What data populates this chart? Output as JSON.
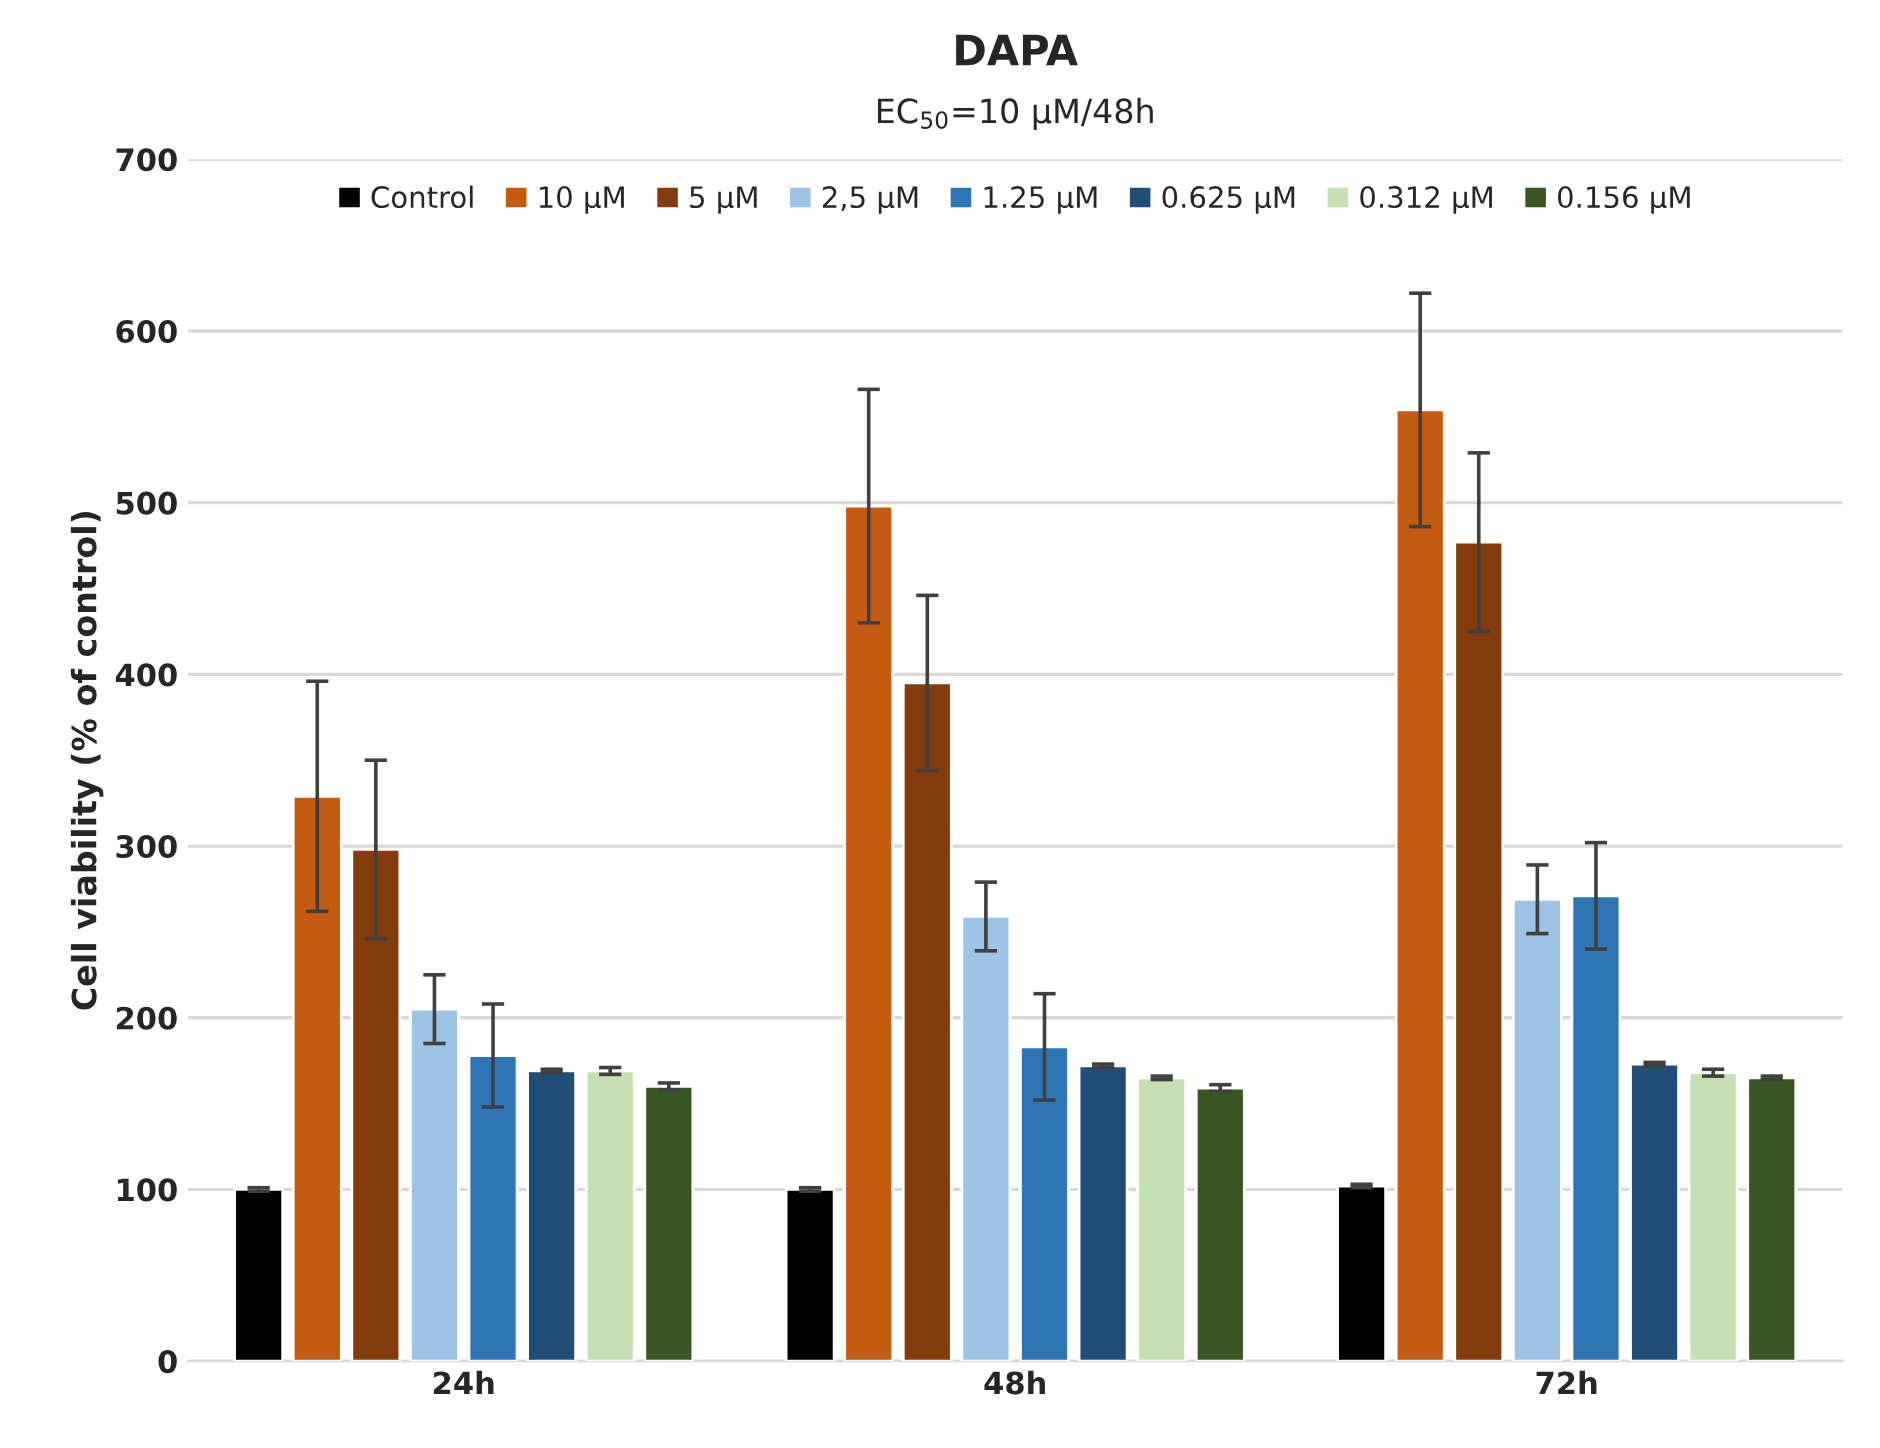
{
  "chart_data": {
    "type": "bar",
    "title": "DAPA",
    "subtitle": "EC$_{50}$=10 μM/48h",
    "ylabel": "Cell viability (% of control)",
    "categories": [
      "24h",
      "48h",
      "72h"
    ],
    "series": [
      {
        "name": "Control",
        "color": "#000000",
        "values": [
          100,
          100,
          102
        ],
        "errors": [
          1,
          1,
          1
        ]
      },
      {
        "name": "10 μM",
        "color": "#c55a11",
        "values": [
          329,
          498,
          554
        ],
        "errors": [
          67,
          68,
          68
        ]
      },
      {
        "name": "5 μM",
        "color": "#843c0c",
        "values": [
          298,
          395,
          477
        ],
        "errors": [
          52,
          51,
          52
        ]
      },
      {
        "name": "2,5 μM",
        "color": "#9dc3e6",
        "values": [
          205,
          259,
          269
        ],
        "errors": [
          20,
          20,
          20
        ]
      },
      {
        "name": "1.25 μM",
        "color": "#2e75b6",
        "values": [
          178,
          183,
          271
        ],
        "errors": [
          30,
          31,
          31
        ]
      },
      {
        "name": "0.625 μM",
        "color": "#1f4e79",
        "values": [
          169,
          172,
          173
        ],
        "errors": [
          1,
          1,
          1
        ]
      },
      {
        "name": "0.312 μM",
        "color": "#c5e0b4",
        "values": [
          169,
          165,
          168
        ],
        "errors": [
          2,
          1,
          2
        ]
      },
      {
        "name": "0.156 μM",
        "color": "#375623",
        "values": [
          160,
          159,
          165
        ],
        "errors": [
          2,
          2,
          1
        ]
      }
    ],
    "ylim": [
      0,
      700
    ],
    "yticks": [
      0,
      100,
      200,
      300,
      400,
      500,
      600,
      700
    ],
    "grid": "y",
    "legend": "top"
  }
}
